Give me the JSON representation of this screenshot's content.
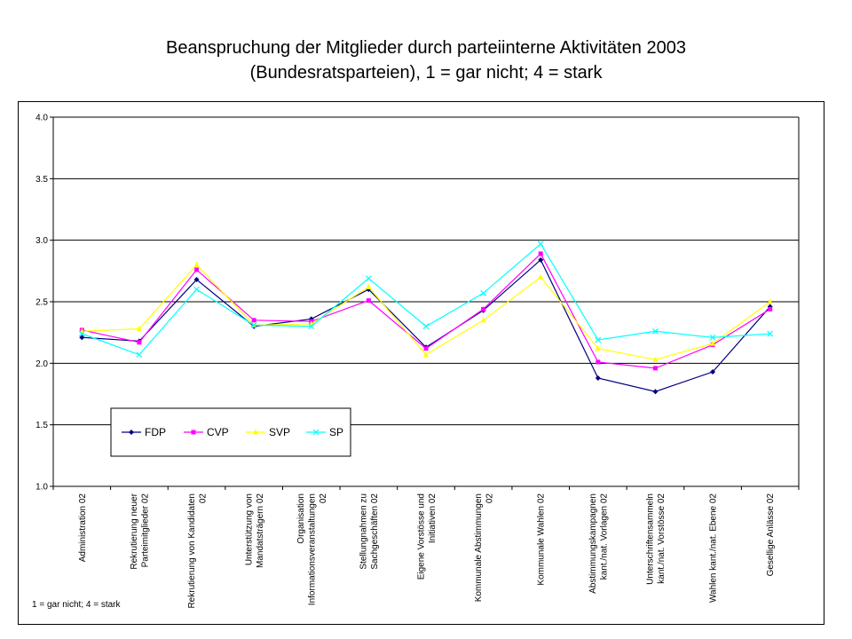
{
  "title_line1": "Beanspruchung der Mitglieder durch parteiinterne Aktivitäten 2003",
  "title_line2": "(Bundesratsparteien), 1 = gar nicht; 4 = stark",
  "footnote": "1 = gar nicht; 4 = stark",
  "colors": {
    "FDP": "#000080",
    "CVP": "#ff00ff",
    "SVP": "#ffff00",
    "SP": "#00ffff"
  },
  "chart_data": {
    "type": "line",
    "title": "Beanspruchung der Mitglieder durch parteiinterne Aktivitäten 2003 (Bundesratsparteien), 1 = gar nicht; 4 = stark",
    "xlabel": "",
    "ylabel": "",
    "ylim": [
      1.0,
      4.0
    ],
    "yticks": [
      "1.0",
      "1.5",
      "2.0",
      "2.5",
      "3.0",
      "3.5",
      "4.0"
    ],
    "grid": true,
    "legend_position": "lower-left inside plot",
    "categories": [
      [
        "Administration 02"
      ],
      [
        "Rekrutierung neuer",
        "Parteimitglieder 02"
      ],
      [
        "Rekrutierung von Kandidaten",
        "02"
      ],
      [
        "Unterstützung von",
        "Mandatsträgern 02"
      ],
      [
        "Organisation",
        "Informationsveranstaltungen",
        "02"
      ],
      [
        "Stellungnahmen zu",
        "Sachgeschäften 02"
      ],
      [
        "Eigene Vorstösse und",
        "Initiativen 02"
      ],
      [
        "Kommunale Abstimmungen",
        "02"
      ],
      [
        "Kommunale Wahlen 02"
      ],
      [
        "Abstimmungskampagnen",
        "kant./nat. Vorlagen 02"
      ],
      [
        "Unterschriftensammeln",
        "kant./nat. Vorstösse 02"
      ],
      [
        "Wahlen kant./nat. Ebene 02"
      ],
      [
        "Gesellige Anlässe 02"
      ]
    ],
    "series": [
      {
        "name": "FDP",
        "marker": "diamond",
        "values": [
          2.21,
          2.18,
          2.68,
          2.3,
          2.36,
          2.6,
          2.13,
          2.43,
          2.84,
          1.88,
          1.77,
          1.93,
          2.46
        ]
      },
      {
        "name": "CVP",
        "marker": "square",
        "values": [
          2.27,
          2.17,
          2.76,
          2.35,
          2.34,
          2.51,
          2.12,
          2.44,
          2.89,
          2.01,
          1.96,
          2.15,
          2.44
        ]
      },
      {
        "name": "SVP",
        "marker": "triangle",
        "values": [
          2.26,
          2.28,
          2.8,
          2.31,
          2.32,
          2.62,
          2.07,
          2.35,
          2.7,
          2.12,
          2.03,
          2.16,
          2.5
        ]
      },
      {
        "name": "SP",
        "marker": "x",
        "values": [
          2.24,
          2.07,
          2.6,
          2.31,
          2.3,
          2.69,
          2.3,
          2.57,
          2.97,
          2.19,
          2.26,
          2.21,
          2.24
        ]
      }
    ]
  }
}
